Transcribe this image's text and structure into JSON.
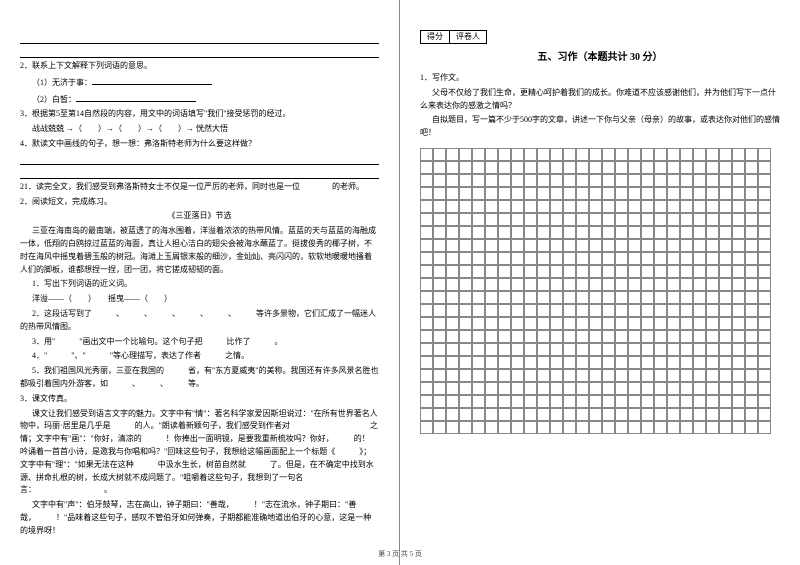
{
  "left": {
    "q2_intro": "2．联系上下文解释下列词语的意思。",
    "q2_item1": "（1）无济于事：",
    "q2_item2": "（2）白皙：",
    "q3": "3．根据第5至第14自然段的内容，用文中的词语填写\"我们\"接受惩罚的经过。",
    "q3_line": "战战兢兢 →（　　）→（　　）→（　　）→ 恍然大悟",
    "q4": "4．默读文中画线的句子，想一想：弗洛斯特老师为什么要这样做？",
    "q21": "21．读完全文，我们感受到弗洛斯特女士不仅是一位严厉的老师，同时也是一位　　　　的老师。",
    "read2_title": "2．阅读短文，完成练习。",
    "passage_title": "《三亚落日》节选",
    "passage_p1": "三亚在海南岛的最南端，被蓝透了的海水围着，洋溢着浓浓的热带风情。蓝蓝的天与蓝蓝的海融成一体，低翔的白鸥掠过蓝蓝的海面，真让人担心洁白的翅尖会被海水蘸蓝了。挺拔俊秀的椰子树，不时在海风中摇曳着碧玉般的树冠。海滩上玉屑银末般的细沙，金灿灿、亮闪闪的，软软地暖暖地搔着人们的脚板，谁都想捏一捏，团一团，将它搓成韧韧的面。",
    "p_1": "1．写出下列词语的近义词。",
    "p_1_line": "洋溢——（　　）　　摇曳——（　　）",
    "p_2": "2．这段话写到了　　　、　　　、　　　、　　　、　　　、　　　等许多景物，它们汇成了一幅迷人的热带风情图。",
    "p_3": "3．用\"　　　\"画出文中一个比喻句。这个句子把　　　比作了　　　。",
    "p_4": "4．\"　　　\"、\"　　　\"等心理描写，表达了作者　　　之情。",
    "p_5": "5．我们祖国风光秀丽，三亚在我国的　　　省，有\"东方夏威夷\"的美称。我国还有许多风景名胜也都吸引着国内外游客，如　　　、　　　、　　　等。",
    "read3_title": "3．课文传真。",
    "r3_p1": "课文让我们感受到语言文字的魅力。文字中有\"情\"：著名科学家爱因斯坦说过：\"在所有世界著名人物中，玛丽·居里是几乎是　　　的人。\"朗读着新颖句子，我们感受到作者对　　　　　　　　　　之情；文字中有\"画\"：\"你好，清凉的　　　！你捧出一面明镜，是要我重新梳妆吗？你好，　　　的！　　　吟诵着一首首小诗，是邀我与你唱和吗？\"回味这些句子，我想给这幅画面配上一个标题《　　　》；文字中有\"理\"：\"如果无法在这种　　　中汲水生长，树苗自然就　　　了。但是，在不确定中找到水源、拼命扎根的树，长成大树就不成问题了。\"咀嚼着这些句子，我想到了一句名言：　　　　　　　　　。",
    "r3_p2": "文字中有\"声\"：伯牙鼓琴，志在高山，钟子期曰：\"善哉，　　　！\"志在流水，钟子期曰：\"善哉，　　　！\"品味着这些句子，感叹不管伯牙如何弹奏，子期都能准确地道出伯牙的心意，这是一种　　　的境界呀！"
  },
  "right": {
    "score_label1": "得分",
    "score_label2": "评卷人",
    "section_title": "五、习作（本题共计 30 分）",
    "q1": "1．写作文。",
    "q1_p1": "父母不仅给了我们生命，更精心呵护着我们的成长。你难道不应该感谢他们，并为他们写下一点什么来表达你的感激之情吗？",
    "q1_p2": "自拟题目，写一篇不少于500字的文章，讲述一下你与父亲（母亲）的故事，或表达你对他们的感情吧！"
  },
  "grid": {
    "rows": 22,
    "cols": 27,
    "cell_size": 13,
    "border_color": "#888888"
  },
  "footer": "第 3 页 共 5 页",
  "colors": {
    "text": "#000000",
    "background": "#ffffff",
    "grid_border": "#888888"
  },
  "typography": {
    "body_fontsize": 8,
    "title_fontsize": 10,
    "footer_fontsize": 7,
    "font_family": "SimSun"
  }
}
